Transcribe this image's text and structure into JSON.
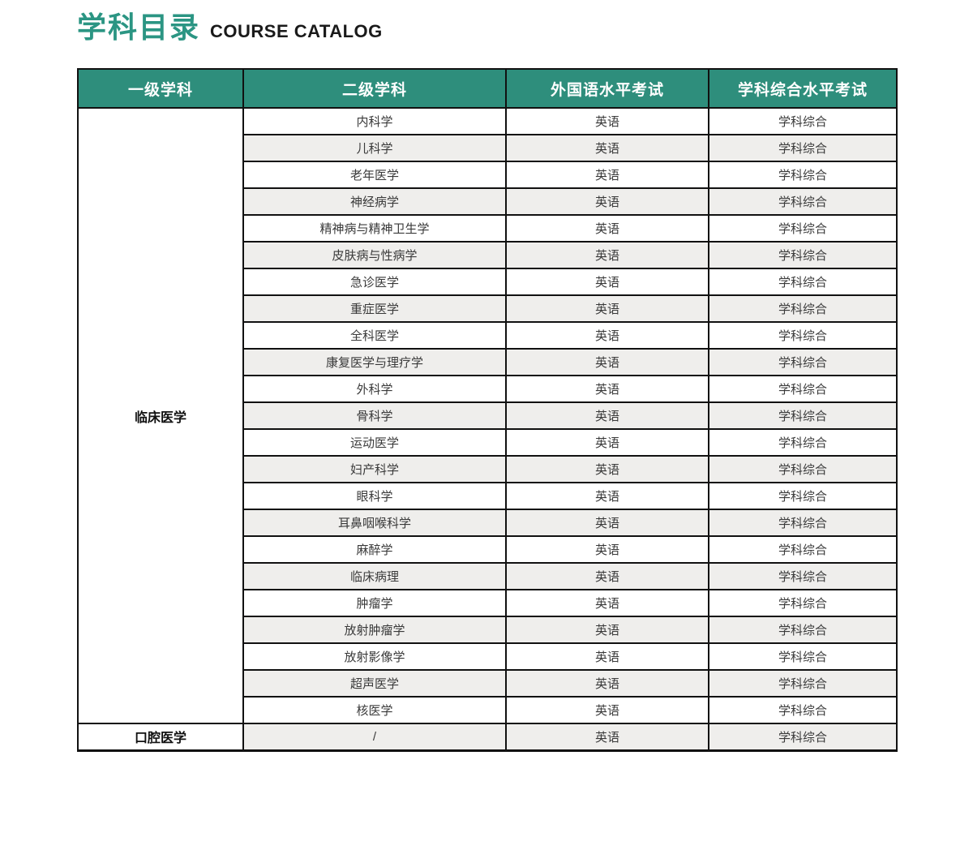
{
  "header": {
    "title_cn": "学科目录",
    "title_en": "COURSE CATALOG"
  },
  "colors": {
    "accent_green": "#2b9583",
    "header_bg": "#2e8e7c",
    "header_text": "#ffffff",
    "row_alt_bg": "#efeeec",
    "border_dark": "#111111",
    "cell_text": "#3a3a3a",
    "primary_text": "#111111"
  },
  "table": {
    "headers": [
      "一级学科",
      "二级学科",
      "外国语水平考试",
      "学科综合水平考试"
    ],
    "primary_groups": [
      {
        "label": "临床医学",
        "rowspan": 23
      },
      {
        "label": "口腔医学",
        "rowspan": 1
      }
    ],
    "rows": [
      {
        "secondary": "内科学",
        "foreign": "英语",
        "comprehensive": "学科综合"
      },
      {
        "secondary": "儿科学",
        "foreign": "英语",
        "comprehensive": "学科综合"
      },
      {
        "secondary": "老年医学",
        "foreign": "英语",
        "comprehensive": "学科综合"
      },
      {
        "secondary": "神经病学",
        "foreign": "英语",
        "comprehensive": "学科综合"
      },
      {
        "secondary": "精神病与精神卫生学",
        "foreign": "英语",
        "comprehensive": "学科综合"
      },
      {
        "secondary": "皮肤病与性病学",
        "foreign": "英语",
        "comprehensive": "学科综合"
      },
      {
        "secondary": "急诊医学",
        "foreign": "英语",
        "comprehensive": "学科综合"
      },
      {
        "secondary": "重症医学",
        "foreign": "英语",
        "comprehensive": "学科综合"
      },
      {
        "secondary": "全科医学",
        "foreign": "英语",
        "comprehensive": "学科综合"
      },
      {
        "secondary": "康复医学与理疗学",
        "foreign": "英语",
        "comprehensive": "学科综合"
      },
      {
        "secondary": "外科学",
        "foreign": "英语",
        "comprehensive": "学科综合"
      },
      {
        "secondary": "骨科学",
        "foreign": "英语",
        "comprehensive": "学科综合"
      },
      {
        "secondary": "运动医学",
        "foreign": "英语",
        "comprehensive": "学科综合"
      },
      {
        "secondary": "妇产科学",
        "foreign": "英语",
        "comprehensive": "学科综合"
      },
      {
        "secondary": "眼科学",
        "foreign": "英语",
        "comprehensive": "学科综合"
      },
      {
        "secondary": "耳鼻咽喉科学",
        "foreign": "英语",
        "comprehensive": "学科综合"
      },
      {
        "secondary": "麻醉学",
        "foreign": "英语",
        "comprehensive": "学科综合"
      },
      {
        "secondary": "临床病理",
        "foreign": "英语",
        "comprehensive": "学科综合"
      },
      {
        "secondary": "肿瘤学",
        "foreign": "英语",
        "comprehensive": "学科综合"
      },
      {
        "secondary": "放射肿瘤学",
        "foreign": "英语",
        "comprehensive": "学科综合"
      },
      {
        "secondary": "放射影像学",
        "foreign": "英语",
        "comprehensive": "学科综合"
      },
      {
        "secondary": "超声医学",
        "foreign": "英语",
        "comprehensive": "学科综合"
      },
      {
        "secondary": "核医学",
        "foreign": "英语",
        "comprehensive": "学科综合"
      },
      {
        "secondary": "/",
        "foreign": "英语",
        "comprehensive": "学科综合"
      }
    ]
  }
}
